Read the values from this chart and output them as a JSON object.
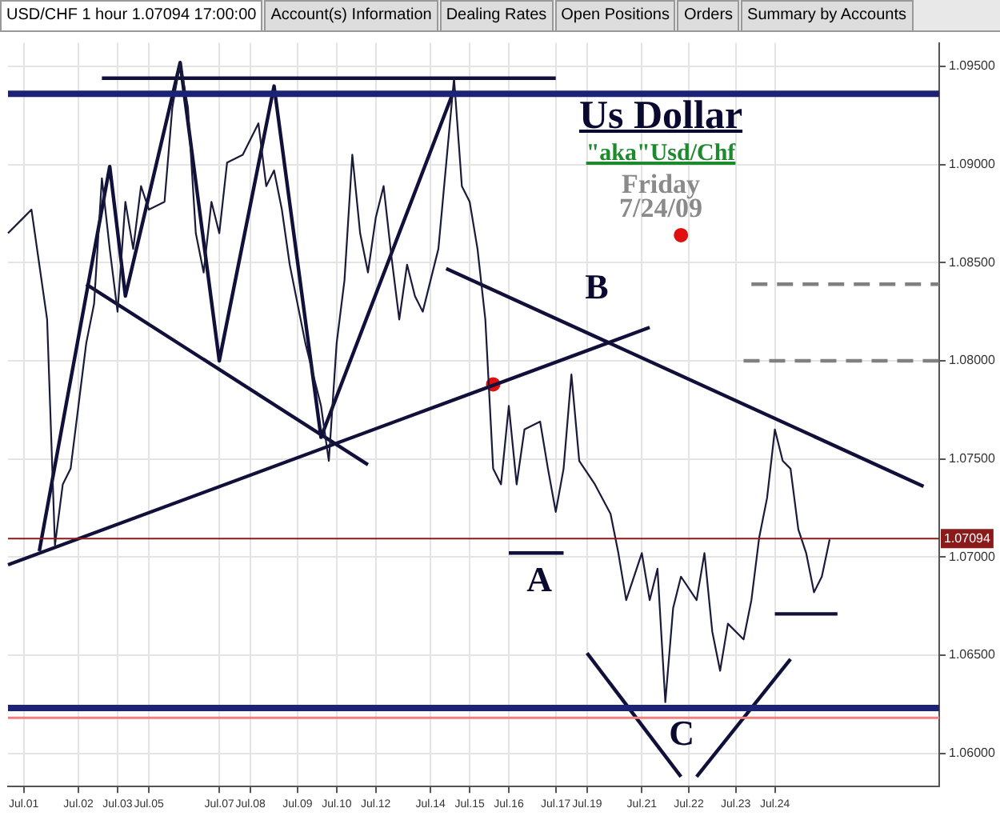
{
  "chart_data": {
    "type": "line",
    "title": "Us Dollar",
    "subtitle": "\"aka\"Usd/Chf",
    "annotations": [
      "USD/CHF 1 hour 1.07094 17:00:00",
      "Account(s) Information",
      "Dealing Rates",
      "Open Positions",
      "Orders",
      "Summary by Accounts",
      "Friday",
      "7/24/09",
      "B",
      "A",
      "C"
    ],
    "categories": [
      null,
      null,
      "Jul.01",
      null,
      null,
      null,
      null,
      null,
      null,
      "Jul.02",
      null,
      null,
      null,
      null,
      "Jul.03",
      null,
      null,
      null,
      "Jul.05",
      null,
      null,
      null,
      null,
      null,
      null,
      null,
      null,
      "Jul.07",
      null,
      null,
      null,
      "Jul.08",
      null,
      null,
      null,
      null,
      null,
      "Jul.09",
      null,
      null,
      null,
      null,
      "Jul.10",
      null,
      null,
      null,
      null,
      "Jul.12",
      null,
      null,
      null,
      null,
      null,
      null,
      "Jul.14",
      null,
      null,
      null,
      null,
      "Jul.15",
      null,
      null,
      null,
      null,
      "Jul.16",
      null,
      null,
      null,
      null,
      null,
      "Jul.17",
      null,
      null,
      null,
      "Jul.19",
      null,
      null,
      null,
      null,
      null,
      null,
      "Jul.21",
      null,
      null,
      null,
      null,
      null,
      "Jul.22",
      null,
      null,
      null,
      null,
      null,
      "Jul.23",
      null,
      null,
      null,
      null,
      "Jul.24",
      null,
      null,
      null,
      null,
      null,
      null,
      null,
      null,
      null,
      null,
      null,
      null,
      null,
      null,
      null,
      null,
      null,
      null,
      null,
      null,
      null
    ],
    "ylim": [
      1.0583,
      1.0962
    ],
    "yticks": [
      {
        "value": 1.06,
        "label": "1.06000"
      },
      {
        "value": 1.065,
        "label": "1.06500"
      },
      {
        "value": 1.07,
        "label": "1.07000"
      },
      {
        "value": 1.075,
        "label": "1.07500"
      },
      {
        "value": 1.08,
        "label": "1.08000"
      },
      {
        "value": 1.085,
        "label": "1.08500"
      },
      {
        "value": 1.09,
        "label": "1.09000"
      },
      {
        "value": 1.095,
        "label": "1.09500"
      }
    ],
    "grid": true,
    "legend": false,
    "marker": "none",
    "line_style": "solid",
    "ref_lines": [
      {
        "axis": "y",
        "value": 1.0936,
        "color": "#1c2275"
      },
      {
        "axis": "y",
        "value": 1.0623,
        "color": "#1c2275"
      },
      {
        "axis": "y",
        "value": 1.0618,
        "color": "#f08080"
      },
      {
        "axis": "y",
        "value": 1.07094,
        "label": "1.07094",
        "color": "#8b1a1a"
      }
    ],
    "series": [
      {
        "color": "#1a1a3a",
        "values": [
          1.0865,
          null,
          1.0873,
          1.0877,
          1.0849,
          1.0821,
          1.0706,
          1.0737,
          1.0745,
          null,
          1.0809,
          1.0829,
          1.0893,
          1.0857,
          1.0825,
          1.0881,
          1.0857,
          1.0889,
          1.0877,
          null,
          1.0881,
          1.0929,
          1.0952,
          1.0929,
          1.0865,
          1.0845,
          1.0881,
          1.0865,
          1.0901,
          null,
          1.0905,
          null,
          1.0921,
          1.0889,
          1.0897,
          1.0877,
          1.0849,
          null,
          1.0809,
          null,
          1.0777,
          1.0749,
          1.0809,
          1.0841,
          1.0905,
          1.0865,
          1.0845,
          1.0873,
          1.0889,
          1.0853,
          1.0821,
          1.0849,
          1.0833,
          1.0825,
          null,
          1.0857,
          null,
          1.0944,
          1.0889,
          1.0881,
          1.0857,
          1.0821,
          1.0745,
          1.0737,
          1.0777,
          1.0737,
          1.0765,
          null,
          1.0769,
          1.0745,
          1.0723,
          1.0745,
          1.0793,
          1.0749,
          null,
          1.0737,
          null,
          1.0722,
          1.0702,
          1.0678,
          null,
          1.0702,
          1.0678,
          1.0694,
          1.0626,
          1.0674,
          1.069,
          null,
          1.0678,
          1.0702,
          1.0662,
          1.0642,
          1.0666,
          null,
          1.0658,
          1.0678,
          1.071,
          1.073,
          1.0765,
          1.0749,
          1.0745,
          1.0714,
          1.0702,
          1.0682,
          1.069,
          1.0709,
          null,
          null,
          null,
          null,
          null,
          null,
          null,
          null,
          null,
          null,
          null,
          null,
          null,
          null
        ]
      },
      {
        "color": "#10103a",
        "values": [
          null,
          null,
          null,
          null,
          null,
          null,
          null,
          null,
          null,
          null,
          null,
          null,
          1.0944,
          null,
          null,
          null,
          null,
          null,
          null,
          null,
          null,
          null,
          null,
          null,
          null,
          null,
          null,
          null,
          null,
          null,
          null,
          null,
          null,
          null,
          null,
          null,
          null,
          null,
          null,
          null,
          null,
          null,
          null,
          null,
          null,
          null,
          null,
          null,
          null,
          null,
          null,
          null,
          null,
          null,
          null,
          null,
          null,
          null,
          null,
          null,
          null,
          null,
          null,
          null,
          null,
          null,
          null,
          null,
          null,
          null,
          1.0944,
          null,
          null,
          null,
          null,
          null,
          null,
          null,
          null,
          null,
          null,
          null,
          null,
          null,
          null,
          null,
          null,
          null,
          null,
          null,
          null,
          null,
          null,
          null,
          null,
          null,
          null,
          null,
          null,
          null,
          null,
          null,
          null,
          null,
          null,
          null,
          null,
          null,
          null,
          null,
          null,
          null,
          null,
          null,
          null,
          null,
          null,
          null,
          null,
          null
        ]
      },
      {
        "color": "#10103a",
        "values": [
          null,
          null,
          null,
          null,
          1.0703,
          null,
          null,
          null,
          null,
          null,
          null,
          null,
          null,
          1.0899,
          null,
          1.0833,
          null,
          null,
          null,
          null,
          null,
          null,
          1.0952,
          null,
          null,
          null,
          null,
          1.08,
          null,
          null,
          null,
          null,
          null,
          null,
          1.094,
          null,
          null,
          null,
          null,
          null,
          1.0761,
          null,
          null,
          null,
          null,
          null,
          null,
          null,
          null,
          null,
          null,
          null,
          null,
          null,
          null,
          null,
          null,
          1.0938,
          null,
          null,
          null,
          null,
          null,
          null,
          null,
          null,
          null,
          null,
          null,
          null,
          null,
          null,
          null,
          null,
          null,
          null,
          null,
          null,
          null,
          null,
          null,
          null,
          null,
          null,
          null,
          null,
          null,
          null,
          null,
          null,
          null,
          null,
          null,
          null,
          null,
          null,
          null,
          null,
          null,
          null,
          null,
          null,
          null,
          null,
          null,
          null,
          null,
          null,
          null,
          null,
          null,
          null,
          null,
          null,
          null,
          null,
          null,
          null,
          null,
          null
        ]
      },
      {
        "color": "#10103a",
        "values": [
          null,
          null,
          null,
          null,
          null,
          null,
          null,
          null,
          null,
          null,
          1.0839,
          null,
          null,
          null,
          null,
          null,
          null,
          null,
          null,
          null,
          null,
          null,
          null,
          null,
          null,
          null,
          null,
          null,
          null,
          null,
          null,
          null,
          null,
          null,
          null,
          null,
          null,
          null,
          null,
          null,
          null,
          null,
          null,
          null,
          null,
          null,
          1.0747,
          null,
          null,
          null,
          null,
          null,
          null,
          null,
          null,
          null,
          null,
          null,
          null,
          null,
          null,
          null,
          null,
          null,
          null,
          null,
          null,
          null,
          null,
          null,
          null,
          null,
          null,
          null,
          null,
          null,
          null,
          null,
          null,
          null,
          null,
          null,
          null,
          null,
          null,
          null,
          null,
          null,
          null,
          null,
          null,
          null,
          null,
          null,
          null,
          null,
          null,
          null,
          null,
          null,
          null,
          null,
          null,
          null,
          null,
          null,
          null,
          null,
          null,
          null,
          null,
          null,
          null,
          null,
          null,
          null,
          null,
          null,
          null,
          null
        ]
      },
      {
        "color": "#10103a",
        "values": [
          1.0696,
          null,
          null,
          null,
          null,
          null,
          null,
          null,
          null,
          null,
          null,
          null,
          null,
          null,
          null,
          null,
          null,
          null,
          null,
          null,
          null,
          null,
          null,
          null,
          null,
          null,
          null,
          null,
          null,
          null,
          null,
          null,
          null,
          null,
          null,
          null,
          null,
          null,
          null,
          null,
          null,
          null,
          null,
          null,
          null,
          null,
          null,
          null,
          null,
          null,
          null,
          null,
          null,
          null,
          null,
          null,
          null,
          null,
          null,
          null,
          null,
          null,
          null,
          null,
          null,
          null,
          null,
          null,
          null,
          null,
          null,
          null,
          null,
          null,
          null,
          null,
          null,
          null,
          null,
          null,
          null,
          null,
          1.0817,
          null,
          null,
          null,
          null,
          null,
          null,
          null,
          null,
          null,
          null,
          null,
          null,
          null,
          null,
          null,
          null,
          null,
          null,
          null,
          null,
          null,
          null,
          null,
          null,
          null,
          null,
          null,
          null,
          null,
          null,
          null,
          null,
          null,
          null,
          null,
          null,
          null
        ]
      },
      {
        "color": "#10103a",
        "values": [
          null,
          null,
          null,
          null,
          null,
          null,
          null,
          null,
          null,
          null,
          null,
          null,
          null,
          null,
          null,
          null,
          null,
          null,
          null,
          null,
          null,
          null,
          null,
          null,
          null,
          null,
          null,
          null,
          null,
          null,
          null,
          null,
          null,
          null,
          null,
          null,
          null,
          null,
          null,
          null,
          null,
          null,
          null,
          null,
          null,
          null,
          null,
          null,
          null,
          null,
          null,
          null,
          null,
          null,
          null,
          null,
          1.0847,
          null,
          null,
          null,
          null,
          null,
          null,
          null,
          null,
          null,
          null,
          null,
          null,
          null,
          null,
          null,
          null,
          null,
          null,
          null,
          null,
          null,
          null,
          null,
          null,
          null,
          null,
          null,
          null,
          null,
          null,
          null,
          null,
          null,
          null,
          null,
          null,
          null,
          null,
          null,
          null,
          null,
          null,
          null,
          null,
          null,
          null,
          null,
          null,
          null,
          null,
          null,
          null,
          null,
          null,
          null,
          null,
          null,
          null,
          null,
          null,
          1.0736,
          null,
          null
        ]
      },
      {
        "color": "#10103a",
        "values": [
          null,
          null,
          null,
          null,
          null,
          null,
          null,
          null,
          null,
          null,
          null,
          null,
          null,
          null,
          null,
          null,
          null,
          null,
          null,
          null,
          null,
          null,
          null,
          null,
          null,
          null,
          null,
          null,
          null,
          null,
          null,
          null,
          null,
          null,
          null,
          null,
          null,
          null,
          null,
          null,
          null,
          null,
          null,
          null,
          null,
          null,
          null,
          null,
          null,
          null,
          null,
          null,
          null,
          null,
          null,
          null,
          null,
          null,
          null,
          null,
          null,
          null,
          null,
          null,
          1.0702,
          null,
          null,
          null,
          null,
          null,
          null,
          1.0702,
          null,
          null,
          null,
          null,
          null,
          null,
          null,
          null,
          null,
          null,
          null,
          null,
          null,
          null,
          null,
          null,
          null,
          null,
          null,
          null,
          null,
          null,
          null,
          null,
          null,
          null,
          null,
          null,
          null,
          null,
          null,
          null,
          null,
          null,
          null,
          null,
          null,
          null,
          null,
          null,
          null,
          null,
          null,
          null,
          null,
          null,
          null,
          null
        ]
      },
      {
        "color": "#10103a",
        "values": [
          null,
          null,
          null,
          null,
          null,
          null,
          null,
          null,
          null,
          null,
          null,
          null,
          null,
          null,
          null,
          null,
          null,
          null,
          null,
          null,
          null,
          null,
          null,
          null,
          null,
          null,
          null,
          null,
          null,
          null,
          null,
          null,
          null,
          null,
          null,
          null,
          null,
          null,
          null,
          null,
          null,
          null,
          null,
          null,
          null,
          null,
          null,
          null,
          null,
          null,
          null,
          null,
          null,
          null,
          null,
          null,
          null,
          null,
          null,
          null,
          null,
          null,
          null,
          null,
          null,
          null,
          null,
          null,
          null,
          null,
          null,
          null,
          null,
          null,
          null,
          null,
          null,
          null,
          null,
          null,
          null,
          null,
          null,
          null,
          null,
          null,
          null,
          null,
          null,
          null,
          null,
          null,
          null,
          null,
          null,
          null,
          null,
          null,
          1.0671,
          null,
          null,
          null,
          null,
          null,
          null,
          null,
          1.0671,
          null,
          null,
          null,
          null,
          null,
          null,
          null,
          null,
          null,
          null,
          null,
          null,
          null
        ]
      },
      {
        "color": "#10103a",
        "values": [
          null,
          null,
          null,
          null,
          null,
          null,
          null,
          null,
          null,
          null,
          null,
          null,
          null,
          null,
          null,
          null,
          null,
          null,
          null,
          null,
          null,
          null,
          null,
          null,
          null,
          null,
          null,
          null,
          null,
          null,
          null,
          null,
          null,
          null,
          null,
          null,
          null,
          null,
          null,
          null,
          null,
          null,
          null,
          null,
          null,
          null,
          null,
          null,
          null,
          null,
          null,
          null,
          null,
          null,
          null,
          null,
          null,
          null,
          null,
          null,
          null,
          null,
          null,
          null,
          null,
          null,
          null,
          null,
          null,
          null,
          null,
          null,
          null,
          null,
          1.0651,
          null,
          null,
          null,
          null,
          null,
          null,
          null,
          null,
          null,
          null,
          null,
          1.0588,
          null,
          null,
          null,
          null,
          null,
          null,
          null,
          null,
          null,
          null,
          null,
          null,
          null,
          null,
          null,
          null,
          null,
          null,
          null,
          null,
          null,
          null,
          null,
          null,
          null,
          null,
          null,
          null,
          null,
          null,
          null,
          null,
          null
        ]
      },
      {
        "color": "#10103a",
        "values": [
          null,
          null,
          null,
          null,
          null,
          null,
          null,
          null,
          null,
          null,
          null,
          null,
          null,
          null,
          null,
          null,
          null,
          null,
          null,
          null,
          null,
          null,
          null,
          null,
          null,
          null,
          null,
          null,
          null,
          null,
          null,
          null,
          null,
          null,
          null,
          null,
          null,
          null,
          null,
          null,
          null,
          null,
          null,
          null,
          null,
          null,
          null,
          null,
          null,
          null,
          null,
          null,
          null,
          null,
          null,
          null,
          null,
          null,
          null,
          null,
          null,
          null,
          null,
          null,
          null,
          null,
          null,
          null,
          null,
          null,
          null,
          null,
          null,
          null,
          null,
          null,
          null,
          null,
          null,
          null,
          null,
          null,
          null,
          null,
          null,
          null,
          null,
          null,
          1.0588,
          null,
          null,
          null,
          null,
          null,
          null,
          null,
          null,
          null,
          null,
          null,
          1.0648,
          null,
          null,
          null,
          null,
          null,
          null,
          null,
          null,
          null,
          null,
          null,
          null,
          null,
          null,
          null,
          null,
          null,
          null,
          null
        ]
      },
      {
        "color": "#808080",
        "line_style": "dashed",
        "values": [
          null,
          null,
          null,
          null,
          null,
          null,
          null,
          null,
          null,
          null,
          null,
          null,
          null,
          null,
          null,
          null,
          null,
          null,
          null,
          null,
          null,
          null,
          null,
          null,
          null,
          null,
          null,
          null,
          null,
          null,
          null,
          null,
          null,
          null,
          null,
          null,
          null,
          null,
          null,
          null,
          null,
          null,
          null,
          null,
          null,
          null,
          null,
          null,
          null,
          null,
          null,
          null,
          null,
          null,
          null,
          null,
          null,
          null,
          null,
          null,
          null,
          null,
          null,
          null,
          null,
          null,
          null,
          null,
          null,
          null,
          null,
          null,
          null,
          null,
          null,
          null,
          null,
          null,
          null,
          null,
          null,
          null,
          null,
          null,
          null,
          null,
          null,
          null,
          null,
          null,
          null,
          null,
          null,
          null,
          null,
          1.0839,
          null,
          null,
          null,
          null,
          null,
          null,
          null,
          null,
          null,
          null,
          null,
          null,
          null,
          null,
          null,
          null,
          null,
          null,
          null,
          null,
          null,
          null,
          null,
          1.0839
        ]
      },
      {
        "color": "#808080",
        "line_style": "dashed",
        "values": [
          null,
          null,
          null,
          null,
          null,
          null,
          null,
          null,
          null,
          null,
          null,
          null,
          null,
          null,
          null,
          null,
          null,
          null,
          null,
          null,
          null,
          null,
          null,
          null,
          null,
          null,
          null,
          null,
          null,
          null,
          null,
          null,
          null,
          null,
          null,
          null,
          null,
          null,
          null,
          null,
          null,
          null,
          null,
          null,
          null,
          null,
          null,
          null,
          null,
          null,
          null,
          null,
          null,
          null,
          null,
          null,
          null,
          null,
          null,
          null,
          null,
          null,
          null,
          null,
          null,
          null,
          null,
          null,
          null,
          null,
          null,
          null,
          null,
          null,
          null,
          null,
          null,
          null,
          null,
          null,
          null,
          null,
          null,
          null,
          null,
          null,
          null,
          null,
          null,
          null,
          null,
          null,
          null,
          null,
          1.08,
          null,
          null,
          null,
          null,
          null,
          null,
          null,
          null,
          null,
          null,
          null,
          null,
          null,
          null,
          null,
          null,
          null,
          null,
          null,
          null,
          null,
          null,
          null,
          null,
          1.08
        ]
      },
      {
        "type": "scatter",
        "marker": "circle",
        "color": "#e01010",
        "values": [
          null,
          null,
          null,
          null,
          null,
          null,
          null,
          null,
          null,
          null,
          null,
          null,
          null,
          null,
          null,
          null,
          null,
          null,
          null,
          null,
          null,
          null,
          null,
          null,
          null,
          null,
          null,
          null,
          null,
          null,
          null,
          null,
          null,
          null,
          null,
          null,
          null,
          null,
          null,
          null,
          null,
          null,
          null,
          null,
          null,
          null,
          null,
          null,
          null,
          null,
          null,
          null,
          null,
          null,
          null,
          null,
          null,
          null,
          null,
          null,
          null,
          null,
          1.0788,
          null,
          null,
          null,
          null,
          null,
          null,
          null,
          null,
          null,
          null,
          null,
          null,
          null,
          null,
          null,
          null,
          null,
          null,
          null,
          null,
          null,
          null,
          null,
          1.0864,
          null,
          null,
          null,
          null,
          null,
          null,
          null,
          null,
          null,
          null,
          null,
          null,
          null,
          null,
          null,
          null,
          null,
          null,
          null,
          null,
          null,
          null,
          null,
          null,
          null,
          null,
          null,
          null,
          null,
          null,
          null,
          null,
          null
        ]
      }
    ]
  }
}
